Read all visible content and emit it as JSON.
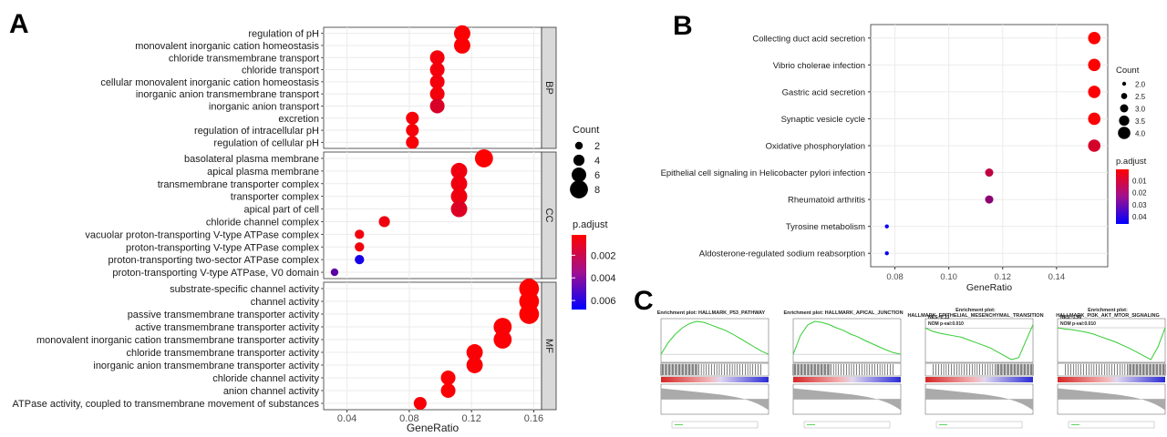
{
  "panel_labels": {
    "a": "A",
    "b": "B",
    "c": "C"
  },
  "colors": {
    "low_padj": "#ff0000",
    "high_padj": "#0000ff",
    "grid": "#ebebeb",
    "strip": "#d9d9d9",
    "gsea_line": "#33cc33"
  },
  "chart_data": [
    {
      "id": "A",
      "type": "scatter",
      "subtype": "dot-plot",
      "xlabel": "GeneRatio",
      "xlim": [
        0.025,
        0.165
      ],
      "xticks": [
        0.04,
        0.08,
        0.12,
        0.16
      ],
      "xtick_labels": [
        "0.04",
        "0.08",
        "0.12",
        "0.16"
      ],
      "facets": [
        {
          "name": "BP",
          "terms": [
            {
              "term": "regulation of pH",
              "gene_ratio": 0.114,
              "count": 7,
              "p_adjust": 0.0003
            },
            {
              "term": "monovalent inorganic cation homeostasis",
              "gene_ratio": 0.114,
              "count": 7,
              "p_adjust": 0.0003
            },
            {
              "term": "chloride transmembrane transport",
              "gene_ratio": 0.098,
              "count": 6,
              "p_adjust": 0.0005
            },
            {
              "term": "chloride transport",
              "gene_ratio": 0.098,
              "count": 6,
              "p_adjust": 0.0005
            },
            {
              "term": "cellular monovalent inorganic cation homeostasis",
              "gene_ratio": 0.098,
              "count": 6,
              "p_adjust": 0.0005
            },
            {
              "term": "inorganic anion transmembrane transport",
              "gene_ratio": 0.098,
              "count": 6,
              "p_adjust": 0.0005
            },
            {
              "term": "inorganic anion transport",
              "gene_ratio": 0.098,
              "count": 6,
              "p_adjust": 0.0012
            },
            {
              "term": "excretion",
              "gene_ratio": 0.082,
              "count": 5,
              "p_adjust": 0.0004
            },
            {
              "term": "regulation of intracellular pH",
              "gene_ratio": 0.082,
              "count": 5,
              "p_adjust": 0.0004
            },
            {
              "term": "regulation of cellular pH",
              "gene_ratio": 0.082,
              "count": 5,
              "p_adjust": 0.0004
            }
          ]
        },
        {
          "name": "CC",
          "terms": [
            {
              "term": "basolateral plasma membrane",
              "gene_ratio": 0.128,
              "count": 8,
              "p_adjust": 0.0002
            },
            {
              "term": "apical plasma membrane",
              "gene_ratio": 0.112,
              "count": 7,
              "p_adjust": 0.0006
            },
            {
              "term": "transmembrane transporter complex",
              "gene_ratio": 0.112,
              "count": 7,
              "p_adjust": 0.0006
            },
            {
              "term": "transporter complex",
              "gene_ratio": 0.112,
              "count": 7,
              "p_adjust": 0.0006
            },
            {
              "term": "apical part of cell",
              "gene_ratio": 0.112,
              "count": 7,
              "p_adjust": 0.0011
            },
            {
              "term": "chloride channel complex",
              "gene_ratio": 0.064,
              "count": 4,
              "p_adjust": 0.0006
            },
            {
              "term": "vacuolar proton-transporting V-type ATPase complex",
              "gene_ratio": 0.048,
              "count": 3,
              "p_adjust": 0.0005
            },
            {
              "term": "proton-transporting V-type ATPase complex",
              "gene_ratio": 0.048,
              "count": 3,
              "p_adjust": 0.0005
            },
            {
              "term": "proton-transporting two-sector ATPase complex",
              "gene_ratio": 0.048,
              "count": 3,
              "p_adjust": 0.0062
            },
            {
              "term": "proton-transporting V-type ATPase, V0 domain",
              "gene_ratio": 0.032,
              "count": 2,
              "p_adjust": 0.0044
            }
          ]
        },
        {
          "name": "MF",
          "terms": [
            {
              "term": "substrate-specific channel activity",
              "gene_ratio": 0.157,
              "count": 9,
              "p_adjust": 0.0002
            },
            {
              "term": "channel activity",
              "gene_ratio": 0.157,
              "count": 9,
              "p_adjust": 0.0002
            },
            {
              "term": "passive transmembrane transporter activity",
              "gene_ratio": 0.157,
              "count": 9,
              "p_adjust": 0.0002
            },
            {
              "term": "active transmembrane transporter activity",
              "gene_ratio": 0.14,
              "count": 8,
              "p_adjust": 0.0003
            },
            {
              "term": "monovalent inorganic cation transmembrane transporter activity",
              "gene_ratio": 0.14,
              "count": 8,
              "p_adjust": 0.0003
            },
            {
              "term": "chloride transmembrane transporter activity",
              "gene_ratio": 0.122,
              "count": 7,
              "p_adjust": 0.0003
            },
            {
              "term": "inorganic anion transmembrane transporter activity",
              "gene_ratio": 0.122,
              "count": 7,
              "p_adjust": 0.0003
            },
            {
              "term": "chloride channel activity",
              "gene_ratio": 0.105,
              "count": 6,
              "p_adjust": 0.0003
            },
            {
              "term": "anion channel activity",
              "gene_ratio": 0.105,
              "count": 6,
              "p_adjust": 0.0003
            },
            {
              "term": "ATPase activity, coupled to transmembrane movement of substances",
              "gene_ratio": 0.087,
              "count": 5,
              "p_adjust": 0.0004
            }
          ]
        }
      ],
      "size_legend": {
        "title": "Count",
        "values": [
          2,
          4,
          6,
          8
        ],
        "labels": [
          "2",
          "4",
          "6",
          "8"
        ]
      },
      "color_legend": {
        "title": "p.adjust",
        "min": 0.0002,
        "max": 0.0068,
        "ticks": [
          0.002,
          0.004,
          0.006
        ],
        "labels": [
          "0.002",
          "0.004",
          "0.006"
        ]
      }
    },
    {
      "id": "B",
      "type": "scatter",
      "subtype": "dot-plot",
      "xlabel": "GeneRatio",
      "xlim": [
        0.071,
        0.159
      ],
      "xticks": [
        0.08,
        0.1,
        0.12,
        0.14
      ],
      "xtick_labels": [
        "0.08",
        "0.10",
        "0.12",
        "0.14"
      ],
      "terms": [
        {
          "term": "Collecting duct acid secretion",
          "gene_ratio": 0.154,
          "count": 4,
          "p_adjust": 0.0005
        },
        {
          "term": "Vibrio cholerae infection",
          "gene_ratio": 0.154,
          "count": 4,
          "p_adjust": 0.0005
        },
        {
          "term": "Gastric acid secretion",
          "gene_ratio": 0.154,
          "count": 4,
          "p_adjust": 0.001
        },
        {
          "term": "Synaptic vesicle cycle",
          "gene_ratio": 0.154,
          "count": 4,
          "p_adjust": 0.0012
        },
        {
          "term": "Oxidative phosphorylation",
          "gene_ratio": 0.154,
          "count": 4,
          "p_adjust": 0.008
        },
        {
          "term": "Epithelial cell signaling in Helicobacter pylori infection",
          "gene_ratio": 0.115,
          "count": 3,
          "p_adjust": 0.012
        },
        {
          "term": "Rheumatoid arthritis",
          "gene_ratio": 0.115,
          "count": 3,
          "p_adjust": 0.021
        },
        {
          "term": "Tyrosine metabolism",
          "gene_ratio": 0.077,
          "count": 2,
          "p_adjust": 0.044
        },
        {
          "term": "Aldosterone-regulated sodium reabsorption",
          "gene_ratio": 0.077,
          "count": 2,
          "p_adjust": 0.044
        }
      ],
      "size_legend": {
        "title": "Count",
        "values": [
          2.0,
          2.5,
          3.0,
          3.5,
          4.0
        ],
        "labels": [
          "2.0",
          "2.5",
          "3.0",
          "3.5",
          "4.0"
        ]
      },
      "color_legend": {
        "title": "p.adjust",
        "min": 0.0005,
        "max": 0.046,
        "ticks": [
          0.01,
          0.02,
          0.03,
          0.04
        ],
        "labels": [
          "0.01",
          "0.02",
          "0.03",
          "0.04"
        ]
      }
    },
    {
      "id": "C",
      "type": "line",
      "subtype": "gsea-enrichment",
      "plots": [
        {
          "title_lines": [
            "Enrichment plot: HALLMARK_P53_PATHWAY"
          ],
          "nes": "NES:2.23",
          "pval": "NOM p-val:0.002",
          "es": [
            0,
            0.22,
            0.38,
            0.5,
            0.58,
            0.62,
            0.6,
            0.55,
            0.5,
            0.45,
            0.38,
            0.3,
            0.22,
            0.14,
            0.06,
            0
          ]
        },
        {
          "title_lines": [
            "Enrichment plot: HALLMARK_APICAL_JUNCTION"
          ],
          "nes": "NES:2.43",
          "pval": "NOM p-val:0.001",
          "es": [
            0,
            0.35,
            0.55,
            0.62,
            0.6,
            0.56,
            0.5,
            0.45,
            0.38,
            0.33,
            0.26,
            0.2,
            0.14,
            0.08,
            0.03,
            0
          ]
        },
        {
          "title_lines": [
            "Enrichment plot:",
            "HALLMARK_EPITHELIAL_MESENCHYMAL_TRANSITION"
          ],
          "nes": "NES:-2.13",
          "pval": "NOM p-val:0.010",
          "es": [
            0,
            -0.05,
            -0.08,
            -0.1,
            -0.12,
            -0.14,
            -0.18,
            -0.22,
            -0.26,
            -0.3,
            -0.36,
            -0.42,
            -0.48,
            -0.45,
            -0.2,
            0.05
          ]
        },
        {
          "title_lines": [
            "Enrichment plot:",
            "HALLMARK_PI3K_AKT_MTOR_SIGNALING"
          ],
          "nes": "NES:-1.96",
          "pval": "NOM p-val:0.010",
          "es": [
            0,
            -0.02,
            -0.03,
            -0.05,
            -0.07,
            -0.1,
            -0.14,
            -0.18,
            -0.22,
            -0.27,
            -0.32,
            -0.38,
            -0.44,
            -0.5,
            -0.3,
            0
          ]
        }
      ]
    }
  ]
}
